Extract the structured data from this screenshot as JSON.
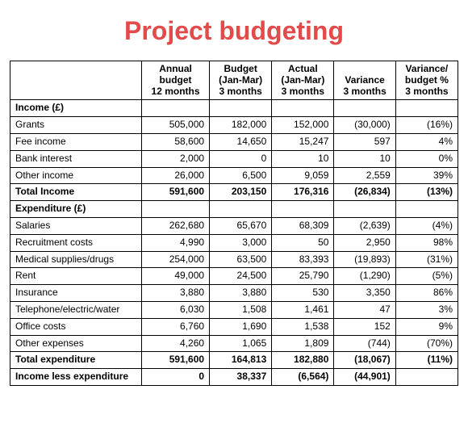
{
  "title": "Project budgeting",
  "title_color": "#e34b4b",
  "columns": [
    "",
    "Annual budget 12 months",
    "Budget (Jan-Mar) 3 months",
    "Actual (Jan-Mar) 3 months",
    "Variance 3 months",
    "Variance/ budget % 3 months"
  ],
  "col_header_lines": [
    [
      ""
    ],
    [
      "Annual",
      "budget",
      "12 months"
    ],
    [
      "Budget",
      "(Jan-Mar)",
      "3 months"
    ],
    [
      "Actual",
      "(Jan-Mar)",
      "3 months"
    ],
    [
      "Variance",
      "3 months"
    ],
    [
      "Variance/",
      "budget %",
      "3 months"
    ]
  ],
  "income": {
    "section_label": "Income (£)",
    "rows": [
      {
        "label": "Grants",
        "annual": "505,000",
        "budget": "182,000",
        "actual": "152,000",
        "variance": "(30,000)",
        "pct": "(16%)"
      },
      {
        "label": "Fee income",
        "annual": "58,600",
        "budget": "14,650",
        "actual": "15,247",
        "variance": "597",
        "pct": "4%"
      },
      {
        "label": "Bank interest",
        "annual": "2,000",
        "budget": "0",
        "actual": "10",
        "variance": "10",
        "pct": "0%"
      },
      {
        "label": "Other income",
        "annual": "26,000",
        "budget": "6,500",
        "actual": "9,059",
        "variance": "2,559",
        "pct": "39%"
      }
    ],
    "total": {
      "label": "Total Income",
      "annual": "591,600",
      "budget": "203,150",
      "actual": "176,316",
      "variance": "(26,834)",
      "pct": "(13%)"
    }
  },
  "expenditure": {
    "section_label": "Expenditure (£)",
    "rows": [
      {
        "label": "Salaries",
        "annual": "262,680",
        "budget": "65,670",
        "actual": "68,309",
        "variance": "(2,639)",
        "pct": "(4%)"
      },
      {
        "label": "Recruitment costs",
        "annual": "4,990",
        "budget": "3,000",
        "actual": "50",
        "variance": "2,950",
        "pct": "98%"
      },
      {
        "label": "Medical supplies/drugs",
        "annual": "254,000",
        "budget": "63,500",
        "actual": "83,393",
        "variance": "(19,893)",
        "pct": "(31%)"
      },
      {
        "label": "Rent",
        "annual": "49,000",
        "budget": "24,500",
        "actual": "25,790",
        "variance": "(1,290)",
        "pct": "(5%)"
      },
      {
        "label": "Insurance",
        "annual": "3,880",
        "budget": "3,880",
        "actual": "530",
        "variance": "3,350",
        "pct": "86%"
      },
      {
        "label": "Telephone/electric/water",
        "annual": "6,030",
        "budget": "1,508",
        "actual": "1,461",
        "variance": "47",
        "pct": "3%"
      },
      {
        "label": "Office costs",
        "annual": "6,760",
        "budget": "1,690",
        "actual": "1,538",
        "variance": "152",
        "pct": "9%"
      },
      {
        "label": "Other expenses",
        "annual": "4,260",
        "budget": "1,065",
        "actual": "1,809",
        "variance": "(744)",
        "pct": "(70%)"
      }
    ],
    "total": {
      "label": "Total expenditure",
      "annual": "591,600",
      "budget": "164,813",
      "actual": "182,880",
      "variance": "(18,067)",
      "pct": "(11%)"
    }
  },
  "net": {
    "label": "Income less expenditure",
    "annual": "0",
    "budget": "38,337",
    "actual": "(6,564)",
    "variance": "(44,901)",
    "pct": ""
  }
}
